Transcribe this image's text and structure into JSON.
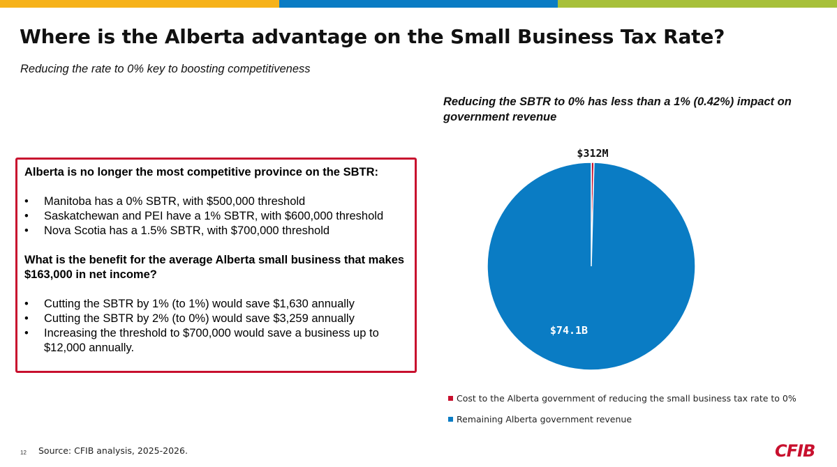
{
  "header": {
    "title": "Where is the Alberta advantage on the Small Business Tax Rate?",
    "subtitle": "Reducing the rate to 0% key to boosting competitiveness"
  },
  "infobox": {
    "heading1": "Alberta is no longer the most competitive province on the SBTR:",
    "list1": [
      "Manitoba has a 0% SBTR, with $500,000 threshold",
      "Saskatchewan and PEI have a 1% SBTR, with $600,000 threshold",
      "Nova Scotia has a 1.5% SBTR, with $700,000 threshold"
    ],
    "heading2": "What is the benefit for the average Alberta small business that makes $163,000 in net income?",
    "list2": [
      "Cutting the SBTR by 1% (to 1%) would save $1,630 annually",
      "Cutting the SBTR by 2% (to 0%) would save $3,259 annually",
      "Increasing the threshold to $700,000 would save a business up to $12,000 annually."
    ],
    "bullet": "•"
  },
  "chart_data": {
    "type": "pie",
    "title": "Reducing the SBTR to 0% has less than a 1% (0.42%) impact on government revenue",
    "series": [
      {
        "name": "Cost to the Alberta government of reducing the small business tax rate to 0%",
        "value": 0.312,
        "label": "$312M",
        "color": "#c8102e"
      },
      {
        "name": "Remaining Alberta government revenue",
        "value": 74.1,
        "label": "$74.1B",
        "color": "#0a7cc4"
      }
    ],
    "unit": "billions CAD",
    "legend_position": "bottom"
  },
  "footer": {
    "page_number": "12",
    "source": "Source: CFIB analysis, 2025-2026.",
    "logo": "CFIB"
  },
  "colors": {
    "accent_red": "#c8102e",
    "accent_blue": "#0a7cc4",
    "top_yellow": "#f6b21a",
    "top_green": "#a7c03a"
  }
}
